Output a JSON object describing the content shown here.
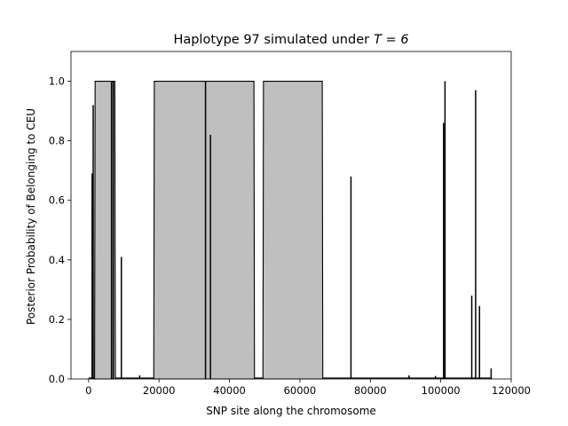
{
  "chart_data": {
    "type": "area",
    "title": "Haplotype 97 simulated under",
    "title_math": "T = 6",
    "xlabel": "SNP site along the chromosome",
    "ylabel": "Posterior Probability of Belonging to CEU",
    "xlim": [
      -5000,
      120000
    ],
    "ylim": [
      0,
      1.1
    ],
    "xticks": [
      0,
      20000,
      40000,
      60000,
      80000,
      100000,
      120000
    ],
    "yticks": [
      0.0,
      0.2,
      0.4,
      0.6,
      0.8,
      1.0
    ],
    "fill_color": "#bfbfbf",
    "line_color": "#000000",
    "grid": false,
    "regions": [
      {
        "start": 1700,
        "end": 7600,
        "value": 1.0
      },
      {
        "start": 18500,
        "end": 47100,
        "value": 1.0
      },
      {
        "start": 49500,
        "end": 66500,
        "value": 1.0
      }
    ],
    "spikes": [
      {
        "x": 1000,
        "y": 0.69
      },
      {
        "x": 1300,
        "y": 0.92
      },
      {
        "x": 6500,
        "y": 1.0
      },
      {
        "x": 7000,
        "y": 1.0
      },
      {
        "x": 9300,
        "y": 0.41
      },
      {
        "x": 33200,
        "y": 1.0
      },
      {
        "x": 34600,
        "y": 0.82
      },
      {
        "x": 74500,
        "y": 0.68
      },
      {
        "x": 100800,
        "y": 0.86
      },
      {
        "x": 101200,
        "y": 1.0
      },
      {
        "x": 108800,
        "y": 0.28
      },
      {
        "x": 109900,
        "y": 0.97
      },
      {
        "x": 111000,
        "y": 0.245
      },
      {
        "x": 114300,
        "y": 0.035
      },
      {
        "x": 14500,
        "y": 0.012
      },
      {
        "x": 91000,
        "y": 0.012
      },
      {
        "x": 98500,
        "y": 0.01
      }
    ]
  }
}
